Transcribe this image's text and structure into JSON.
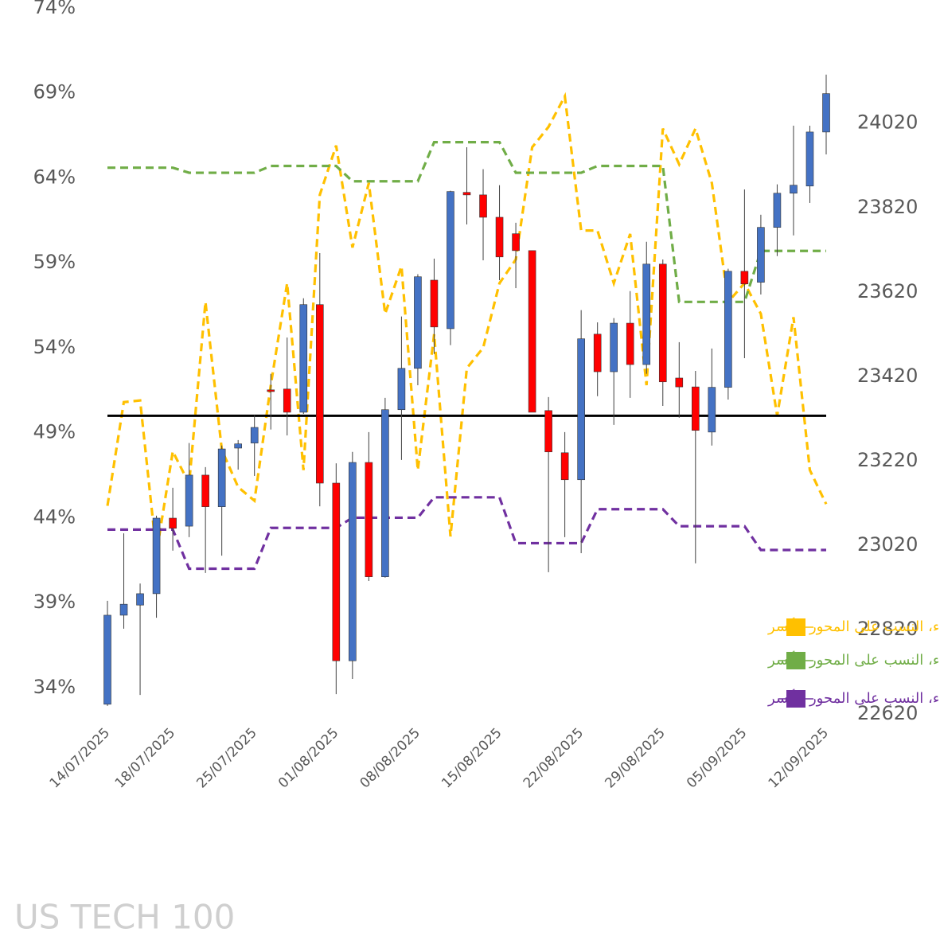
{
  "chart_data": {
    "type": "candlestick",
    "watermark": "US TECH 100",
    "categories": [
      "14/07/2025",
      null,
      null,
      null,
      "18/07/2025",
      null,
      null,
      null,
      null,
      "25/07/2025",
      null,
      null,
      null,
      null,
      "01/08/2025",
      null,
      null,
      null,
      null,
      "08/08/2025",
      null,
      null,
      null,
      null,
      "15/08/2025",
      null,
      null,
      null,
      null,
      "22/08/2025",
      null,
      null,
      null,
      null,
      "29/08/2025",
      null,
      null,
      null,
      null,
      "05/09/2025",
      null,
      null,
      null,
      null,
      "12/09/2025"
    ],
    "ohlc": {
      "open": [
        22643,
        22854,
        22878,
        22905,
        23084,
        23065,
        23186,
        23111,
        23250,
        23262,
        23388,
        23390,
        23335,
        23590,
        23167,
        22746,
        23216,
        22945,
        23341,
        23439,
        23648,
        23533,
        23856,
        23850,
        23797,
        23758,
        23718,
        23339,
        23239,
        23175,
        23520,
        23431,
        23546,
        23448,
        23686,
        23416,
        23395,
        23288,
        23394,
        23669,
        23643,
        23773,
        23854,
        23871,
        23999
      ],
      "high": [
        22888,
        23048,
        22929,
        23090,
        23156,
        23262,
        23205,
        23256,
        23269,
        23328,
        23426,
        23512,
        23605,
        23712,
        23214,
        23241,
        23288,
        23369,
        23562,
        23662,
        23699,
        23860,
        23963,
        23911,
        23873,
        23784,
        23718,
        23371,
        23288,
        23577,
        23548,
        23558,
        23622,
        23739,
        23697,
        23501,
        23433,
        23486,
        23675,
        23863,
        23803,
        23875,
        24014,
        24014,
        24135
      ],
      "low": [
        22639,
        22822,
        22665,
        22848,
        23007,
        23039,
        22954,
        22995,
        23199,
        23184,
        23294,
        23280,
        23331,
        23112,
        22667,
        22703,
        22935,
        22943,
        23222,
        23399,
        23473,
        23494,
        23780,
        23695,
        23648,
        23629,
        23335,
        22956,
        23039,
        23001,
        23373,
        23305,
        23369,
        23426,
        23350,
        23322,
        22977,
        23256,
        23365,
        23463,
        23614,
        23705,
        23754,
        23831,
        23946
      ],
      "close": [
        22854,
        22880,
        22905,
        23084,
        23060,
        23186,
        23111,
        23248,
        23260,
        23299,
        23384,
        23335,
        23590,
        23167,
        22746,
        23216,
        22945,
        23341,
        23439,
        23656,
        23537,
        23858,
        23850,
        23797,
        23703,
        23718,
        23335,
        23241,
        23175,
        23509,
        23431,
        23546,
        23448,
        23686,
        23407,
        23395,
        23292,
        23394,
        23669,
        23639,
        23773,
        23854,
        23873,
        23999,
        24090
      ]
    },
    "up_color": "#4472c4",
    "down_color": "#ff0000",
    "series": [
      {
        "name": "توجه عملاء، نسبة الشراء، النسب على المحور الأيسر",
        "color": "#ffc000",
        "axis": "y",
        "values": [
          44.7,
          50.8,
          50.9,
          41.9,
          47.9,
          46.0,
          56.7,
          48.0,
          45.8,
          45.0,
          51.8,
          57.8,
          46.8,
          63.0,
          65.9,
          59.9,
          63.7,
          56.0,
          58.8,
          46.8,
          54.8,
          42.9,
          52.8,
          54.0,
          57.8,
          59.2,
          65.8,
          67.0,
          68.8,
          60.9,
          60.9,
          57.8,
          60.7,
          51.8,
          66.9,
          64.8,
          66.9,
          63.7,
          56.7,
          57.8,
          56.0,
          50.0,
          55.8,
          46.8,
          44.8
        ]
      },
      {
        "name": "توجه المؤسسات، نسبة الشراء، النسب على المحور الأيسر",
        "color": "#70ad47",
        "axis": "y",
        "values": [
          64.6,
          64.6,
          64.6,
          64.6,
          64.6,
          64.3,
          64.3,
          64.3,
          64.3,
          64.3,
          64.7,
          64.7,
          64.7,
          64.7,
          64.7,
          63.8,
          63.8,
          63.8,
          63.8,
          63.8,
          66.1,
          66.1,
          66.1,
          66.1,
          66.1,
          64.3,
          64.3,
          64.3,
          64.3,
          64.3,
          64.7,
          64.7,
          64.7,
          64.7,
          64.7,
          56.7,
          56.7,
          56.7,
          56.7,
          56.7,
          59.7,
          59.7,
          59.7,
          59.7,
          59.7
        ]
      },
      {
        "name": "توجه صناديق الرفع المالي، نسبة الشراء، النسب على المحور الأيسر",
        "color": "#7030a0",
        "axis": "y",
        "values": [
          43.3,
          43.3,
          43.3,
          43.3,
          43.3,
          41.0,
          41.0,
          41.0,
          41.0,
          41.0,
          43.4,
          43.4,
          43.4,
          43.4,
          43.4,
          44.0,
          44.0,
          44.0,
          44.0,
          44.0,
          45.2,
          45.2,
          45.2,
          45.2,
          45.2,
          42.5,
          42.5,
          42.5,
          42.5,
          42.5,
          44.5,
          44.5,
          44.5,
          44.5,
          44.5,
          43.5,
          43.5,
          43.5,
          43.5,
          43.5,
          42.1,
          42.1,
          42.1,
          42.1,
          42.1
        ]
      }
    ],
    "reference_line": 50,
    "ylim": [
      32.45,
      74
    ],
    "yticks": [
      {
        "value": 34,
        "label": "34%"
      },
      {
        "value": 39,
        "label": "39%"
      },
      {
        "value": 44,
        "label": "44%"
      },
      {
        "value": 49,
        "label": "49%"
      },
      {
        "value": 54,
        "label": "54%"
      },
      {
        "value": 59,
        "label": "59%"
      },
      {
        "value": 64,
        "label": "64%"
      },
      {
        "value": 69,
        "label": "69%"
      },
      {
        "value": 74,
        "label": "74%"
      }
    ],
    "y2lim": [
      22620,
      24293
    ],
    "y2ticks": [
      22620,
      22820,
      23020,
      23220,
      23420,
      23620,
      23820,
      24020
    ],
    "grid": false
  }
}
